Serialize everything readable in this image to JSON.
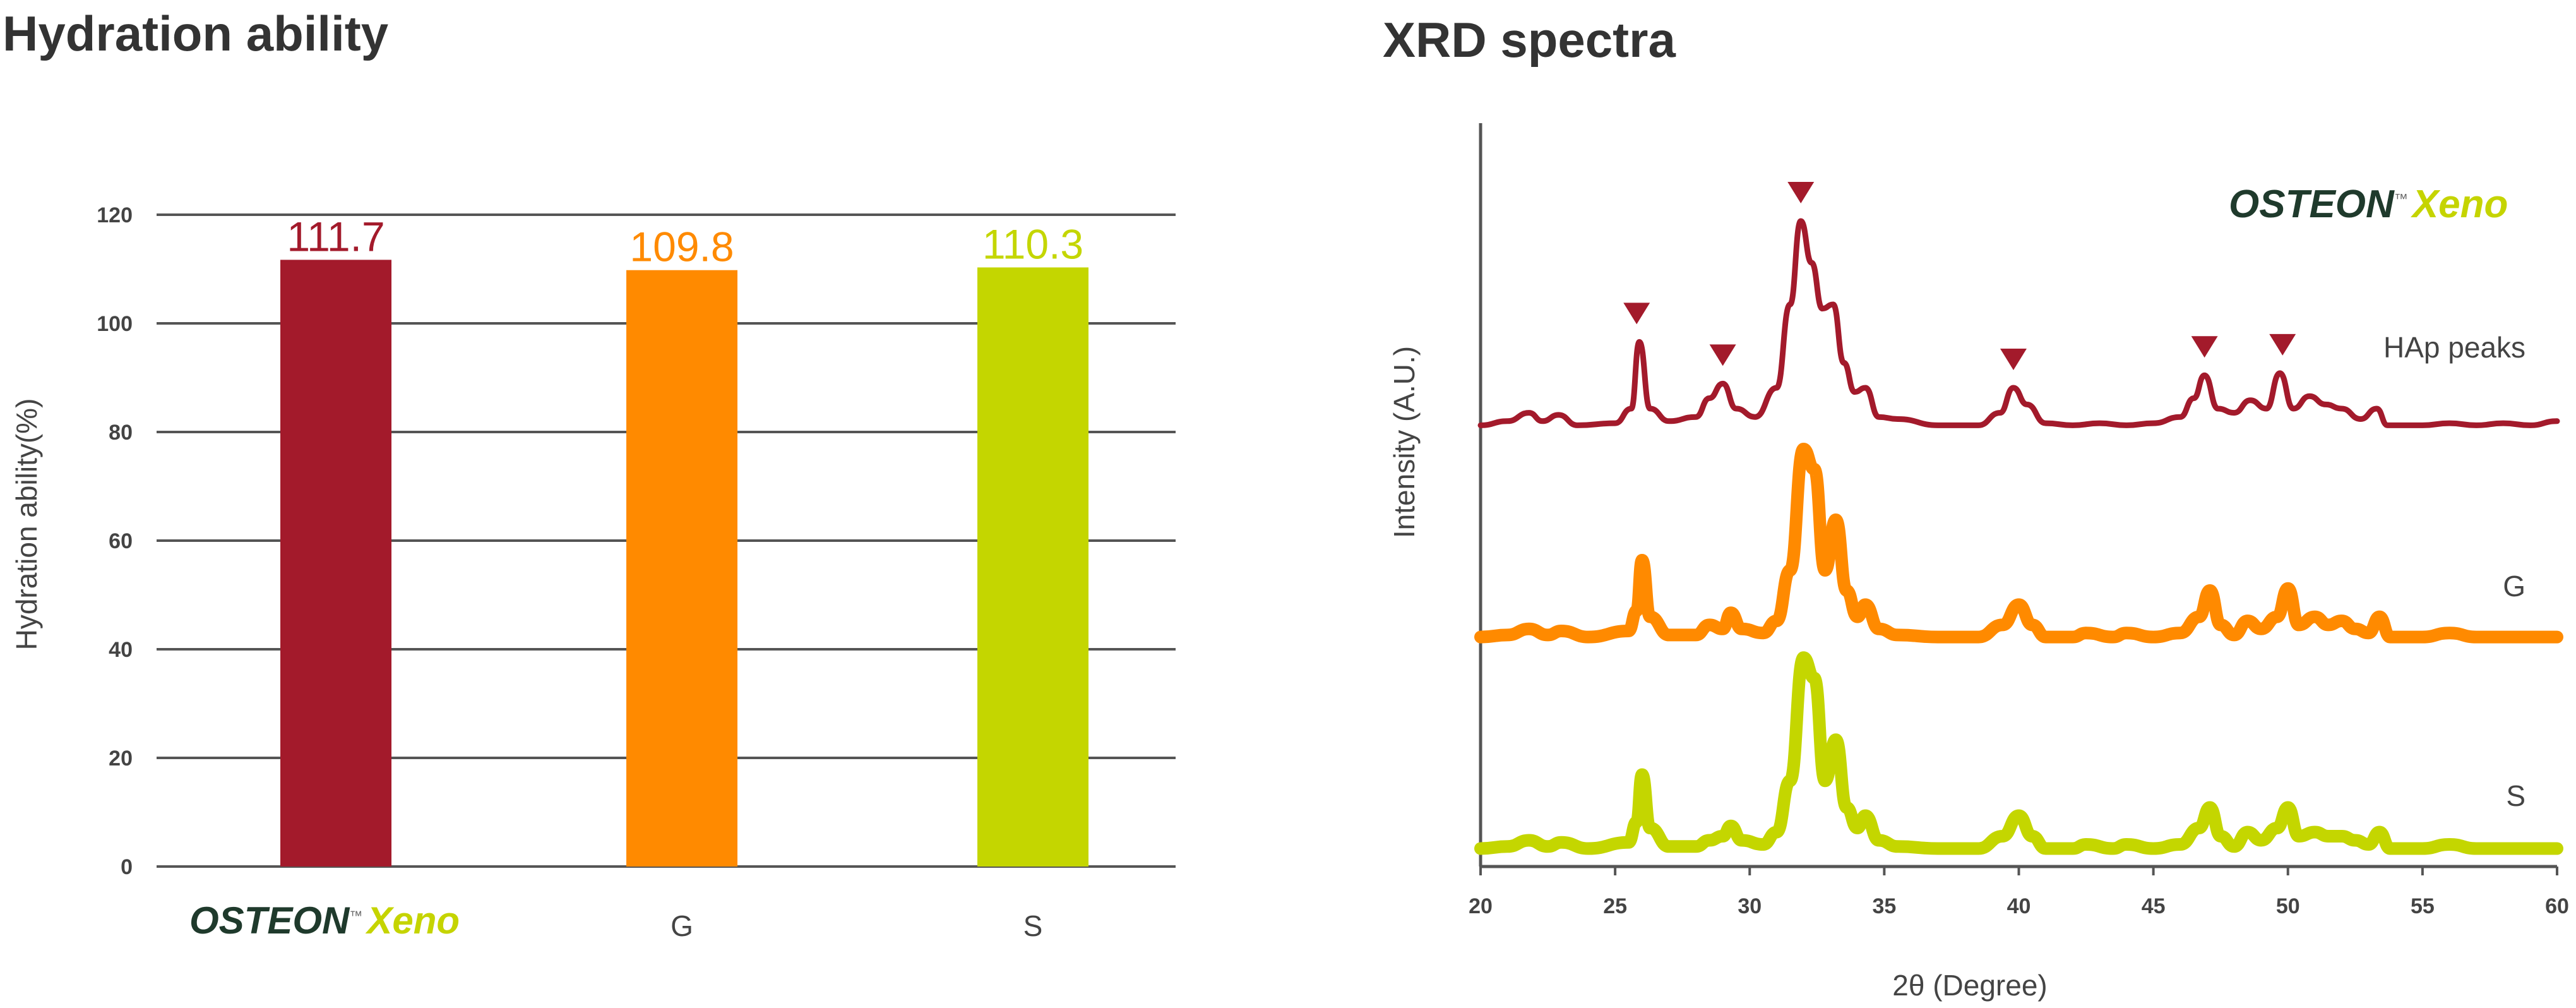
{
  "left_title": "Hydration ability",
  "right_title": "XRD spectra",
  "brand": {
    "name": "OSTEON",
    "tm": "™",
    "suffix": "Xeno"
  },
  "colors": {
    "osteon": "#a31a2b",
    "g": "#ff8a00",
    "s": "#c4d600",
    "grid": "#555555",
    "text": "#444444"
  },
  "chart_data": [
    {
      "type": "bar",
      "title": "Hydration ability",
      "ylabel": "Hydration ability(%)",
      "xlabel": "",
      "ylim": [
        0,
        120
      ],
      "yticks": [
        0,
        20,
        40,
        60,
        80,
        100,
        120
      ],
      "categories": [
        "OSTEON™ Xeno",
        "G",
        "S"
      ],
      "values": [
        111.7,
        109.8,
        110.3
      ],
      "data_labels": [
        "111.7",
        "109.8",
        "110.3"
      ],
      "grid": true
    },
    {
      "type": "line",
      "title": "XRD spectra",
      "xlabel": "2θ (Degree)",
      "ylabel": "Intensity (A.U.)",
      "xlim": [
        20,
        60
      ],
      "xticks": [
        20,
        25,
        30,
        35,
        40,
        45,
        50,
        55,
        60
      ],
      "y_ticks_shown": false,
      "grid": false,
      "series": [
        {
          "name": "OSTEON™ Xeno",
          "label": "HAp peaks",
          "color": "#a31a2b",
          "points": [
            [
              20,
              0.02
            ],
            [
              21,
              0.04
            ],
            [
              21.8,
              0.08
            ],
            [
              22.3,
              0.04
            ],
            [
              22.9,
              0.07
            ],
            [
              23.6,
              0.02
            ],
            [
              25,
              0.03
            ],
            [
              25.6,
              0.1
            ],
            [
              25.9,
              0.42
            ],
            [
              26.3,
              0.1
            ],
            [
              27,
              0.04
            ],
            [
              28,
              0.06
            ],
            [
              28.5,
              0.15
            ],
            [
              29,
              0.22
            ],
            [
              29.5,
              0.1
            ],
            [
              30.2,
              0.06
            ],
            [
              31,
              0.2
            ],
            [
              31.5,
              0.6
            ],
            [
              31.9,
              1.0
            ],
            [
              32.3,
              0.8
            ],
            [
              32.7,
              0.58
            ],
            [
              33.1,
              0.6
            ],
            [
              33.5,
              0.32
            ],
            [
              33.9,
              0.18
            ],
            [
              34.3,
              0.2
            ],
            [
              34.8,
              0.06
            ],
            [
              35.5,
              0.05
            ],
            [
              37,
              0.02
            ],
            [
              38.5,
              0.02
            ],
            [
              39.3,
              0.08
            ],
            [
              39.8,
              0.2
            ],
            [
              40.3,
              0.12
            ],
            [
              41,
              0.03
            ],
            [
              42,
              0.02
            ],
            [
              43,
              0.03
            ],
            [
              44,
              0.02
            ],
            [
              45,
              0.03
            ],
            [
              46,
              0.06
            ],
            [
              46.5,
              0.15
            ],
            [
              46.9,
              0.26
            ],
            [
              47.4,
              0.1
            ],
            [
              48,
              0.08
            ],
            [
              48.6,
              0.14
            ],
            [
              49.2,
              0.1
            ],
            [
              49.7,
              0.27
            ],
            [
              50.2,
              0.1
            ],
            [
              50.8,
              0.16
            ],
            [
              51.4,
              0.12
            ],
            [
              52,
              0.1
            ],
            [
              52.7,
              0.05
            ],
            [
              53.3,
              0.1
            ],
            [
              53.7,
              0.02
            ],
            [
              55,
              0.02
            ],
            [
              56,
              0.03
            ],
            [
              57,
              0.02
            ],
            [
              58,
              0.03
            ],
            [
              59,
              0.02
            ],
            [
              60,
              0.04
            ]
          ]
        },
        {
          "name": "G",
          "label": "G",
          "color": "#ff8a00",
          "points": [
            [
              20,
              0.02
            ],
            [
              21,
              0.03
            ],
            [
              21.8,
              0.06
            ],
            [
              22.5,
              0.03
            ],
            [
              23,
              0.05
            ],
            [
              24,
              0.02
            ],
            [
              25.5,
              0.05
            ],
            [
              25.8,
              0.15
            ],
            [
              26,
              0.4
            ],
            [
              26.3,
              0.12
            ],
            [
              27,
              0.03
            ],
            [
              28,
              0.03
            ],
            [
              28.5,
              0.08
            ],
            [
              29,
              0.06
            ],
            [
              29.3,
              0.14
            ],
            [
              29.7,
              0.06
            ],
            [
              30.5,
              0.04
            ],
            [
              31,
              0.1
            ],
            [
              31.5,
              0.35
            ],
            [
              32,
              0.95
            ],
            [
              32.4,
              0.85
            ],
            [
              32.8,
              0.35
            ],
            [
              33.2,
              0.6
            ],
            [
              33.6,
              0.25
            ],
            [
              34,
              0.12
            ],
            [
              34.3,
              0.18
            ],
            [
              34.8,
              0.06
            ],
            [
              35.5,
              0.03
            ],
            [
              37,
              0.02
            ],
            [
              38.5,
              0.02
            ],
            [
              39.4,
              0.08
            ],
            [
              40,
              0.18
            ],
            [
              40.5,
              0.08
            ],
            [
              41,
              0.02
            ],
            [
              42,
              0.02
            ],
            [
              42.5,
              0.04
            ],
            [
              43.5,
              0.02
            ],
            [
              44,
              0.04
            ],
            [
              45,
              0.02
            ],
            [
              46,
              0.04
            ],
            [
              46.7,
              0.12
            ],
            [
              47.1,
              0.25
            ],
            [
              47.5,
              0.08
            ],
            [
              48,
              0.03
            ],
            [
              48.5,
              0.1
            ],
            [
              49,
              0.06
            ],
            [
              49.6,
              0.12
            ],
            [
              50,
              0.26
            ],
            [
              50.4,
              0.08
            ],
            [
              51,
              0.12
            ],
            [
              51.5,
              0.08
            ],
            [
              52,
              0.1
            ],
            [
              52.5,
              0.06
            ],
            [
              53,
              0.04
            ],
            [
              53.4,
              0.12
            ],
            [
              53.8,
              0.02
            ],
            [
              55,
              0.02
            ],
            [
              56,
              0.04
            ],
            [
              57,
              0.02
            ],
            [
              58,
              0.02
            ],
            [
              59,
              0.02
            ],
            [
              60,
              0.02
            ]
          ]
        },
        {
          "name": "S",
          "label": "S",
          "color": "#c4d600",
          "points": [
            [
              20,
              0.02
            ],
            [
              21,
              0.03
            ],
            [
              21.8,
              0.06
            ],
            [
              22.5,
              0.03
            ],
            [
              23,
              0.05
            ],
            [
              24,
              0.02
            ],
            [
              25.5,
              0.05
            ],
            [
              25.8,
              0.15
            ],
            [
              26,
              0.38
            ],
            [
              26.3,
              0.12
            ],
            [
              27,
              0.03
            ],
            [
              28,
              0.03
            ],
            [
              28.5,
              0.06
            ],
            [
              29,
              0.08
            ],
            [
              29.3,
              0.13
            ],
            [
              29.7,
              0.06
            ],
            [
              30.5,
              0.04
            ],
            [
              31,
              0.1
            ],
            [
              31.5,
              0.35
            ],
            [
              32,
              0.95
            ],
            [
              32.4,
              0.85
            ],
            [
              32.8,
              0.35
            ],
            [
              33.2,
              0.55
            ],
            [
              33.6,
              0.22
            ],
            [
              34,
              0.12
            ],
            [
              34.3,
              0.18
            ],
            [
              34.8,
              0.06
            ],
            [
              35.5,
              0.03
            ],
            [
              37,
              0.02
            ],
            [
              38.5,
              0.02
            ],
            [
              39.4,
              0.08
            ],
            [
              40,
              0.18
            ],
            [
              40.5,
              0.08
            ],
            [
              41,
              0.02
            ],
            [
              42,
              0.02
            ],
            [
              42.5,
              0.04
            ],
            [
              43.5,
              0.02
            ],
            [
              44,
              0.04
            ],
            [
              45,
              0.02
            ],
            [
              46,
              0.04
            ],
            [
              46.7,
              0.12
            ],
            [
              47.1,
              0.22
            ],
            [
              47.5,
              0.08
            ],
            [
              48,
              0.03
            ],
            [
              48.5,
              0.1
            ],
            [
              49,
              0.06
            ],
            [
              49.6,
              0.12
            ],
            [
              50,
              0.22
            ],
            [
              50.4,
              0.08
            ],
            [
              51,
              0.1
            ],
            [
              51.5,
              0.08
            ],
            [
              52,
              0.08
            ],
            [
              52.5,
              0.06
            ],
            [
              53,
              0.04
            ],
            [
              53.4,
              0.1
            ],
            [
              53.8,
              0.02
            ],
            [
              55,
              0.02
            ],
            [
              56,
              0.04
            ],
            [
              57,
              0.02
            ],
            [
              58,
              0.02
            ],
            [
              59,
              0.02
            ],
            [
              60,
              0.02
            ]
          ]
        }
      ],
      "peak_markers_x": [
        25.8,
        29.0,
        31.9,
        39.8,
        46.9,
        49.8
      ]
    }
  ]
}
